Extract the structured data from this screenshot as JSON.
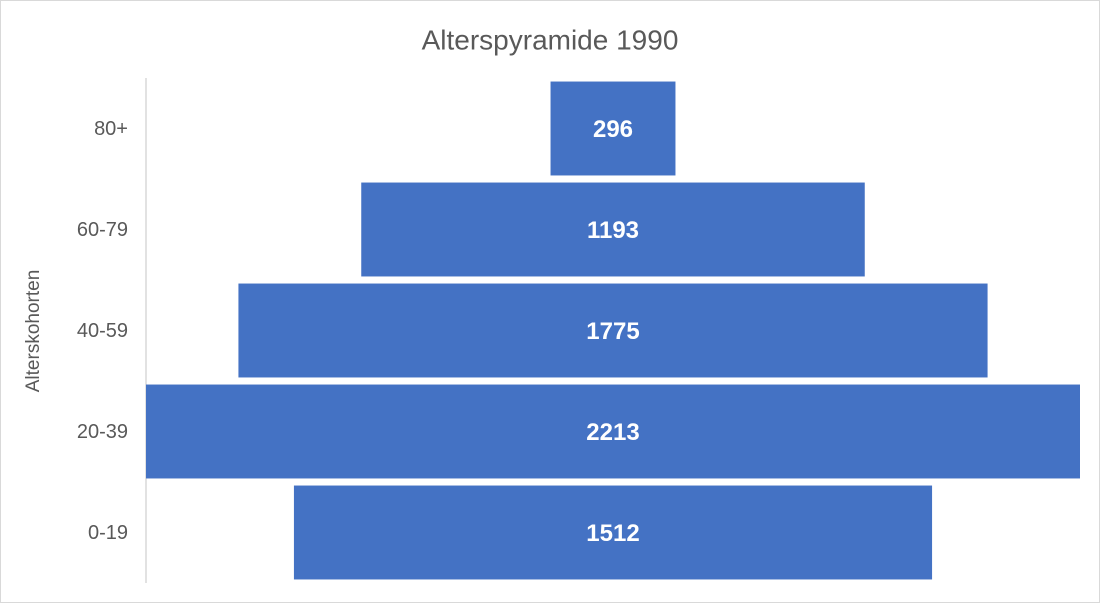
{
  "chart_data": {
    "type": "funnel",
    "title": "Alterspyramide 1990",
    "y_label": "Alterskohorten",
    "categories": [
      "0-19",
      "20-39",
      "40-59",
      "60-79",
      "80+"
    ],
    "values": [
      1512,
      2213,
      1775,
      1193,
      296
    ],
    "color": "#4472c4"
  }
}
